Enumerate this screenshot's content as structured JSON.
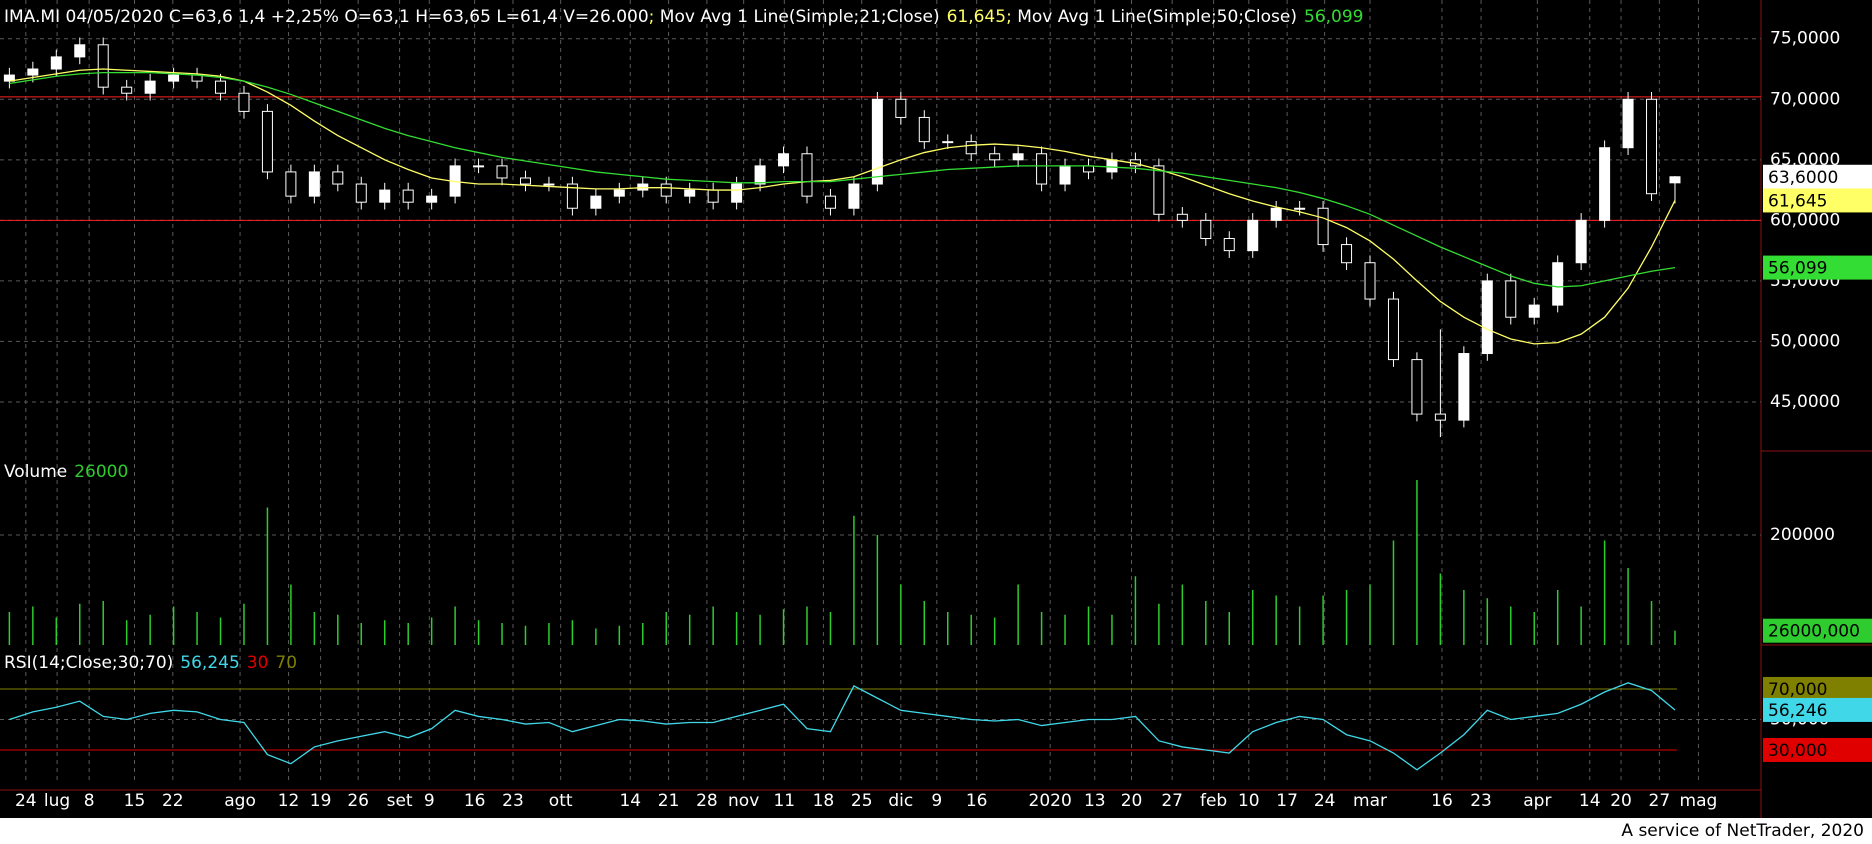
{
  "chart_data": [
    {
      "type": "candlestick",
      "title": "IMA.MI 04/05/2020 C=63,6 1,4 +2,25% O=63,1 H=63,65 L=61,4 V=26.000",
      "separator": "; ",
      "separator_color": "#ffff66",
      "x": [
        0,
        3,
        6,
        9,
        12,
        15,
        18,
        21,
        24,
        27,
        30,
        33,
        36,
        39,
        42,
        45,
        48,
        51,
        54,
        57,
        60,
        63,
        66,
        69,
        72,
        75,
        78,
        81,
        84,
        87,
        90,
        93,
        96,
        99,
        102,
        105,
        108,
        111,
        114,
        117,
        120,
        123,
        126,
        129,
        132,
        135,
        138,
        141,
        144,
        147,
        150,
        153,
        156,
        159,
        162,
        165,
        168,
        171,
        174,
        177,
        180,
        183,
        186,
        189,
        192,
        195,
        198,
        201,
        204,
        207,
        210,
        213
      ],
      "xlim": [
        -1.2,
        224
      ],
      "xticks": [
        {
          "value": 2.1,
          "label": "24"
        },
        {
          "value": 6.1,
          "label": "lug"
        },
        {
          "value": 10.2,
          "label": "8"
        },
        {
          "value": 16,
          "label": "15"
        },
        {
          "value": 20.9,
          "label": "22"
        },
        {
          "value": 29.5,
          "label": "ago"
        },
        {
          "value": 35.7,
          "label": "12"
        },
        {
          "value": 39.8,
          "label": "19"
        },
        {
          "value": 44.6,
          "label": "26"
        },
        {
          "value": 49.9,
          "label": "set"
        },
        {
          "value": 53.7,
          "label": "9"
        },
        {
          "value": 59.5,
          "label": "16"
        },
        {
          "value": 64.4,
          "label": "23"
        },
        {
          "value": 70.5,
          "label": "ott"
        },
        {
          "value": 79.4,
          "label": "14"
        },
        {
          "value": 84.3,
          "label": "21"
        },
        {
          "value": 89.2,
          "label": "28"
        },
        {
          "value": 93.9,
          "label": "nov"
        },
        {
          "value": 99.1,
          "label": "11"
        },
        {
          "value": 104.1,
          "label": "18"
        },
        {
          "value": 109,
          "label": "25"
        },
        {
          "value": 114,
          "label": "dic"
        },
        {
          "value": 118.6,
          "label": "9"
        },
        {
          "value": 123.7,
          "label": "16"
        },
        {
          "value": 133.1,
          "label": "2020"
        },
        {
          "value": 138.8,
          "label": "13"
        },
        {
          "value": 143.5,
          "label": "20"
        },
        {
          "value": 148.7,
          "label": "27"
        },
        {
          "value": 154,
          "label": "feb"
        },
        {
          "value": 158.5,
          "label": "10"
        },
        {
          "value": 163.4,
          "label": "17"
        },
        {
          "value": 168.2,
          "label": "24"
        },
        {
          "value": 174,
          "label": "mar"
        },
        {
          "value": 183.2,
          "label": "16"
        },
        {
          "value": 188.2,
          "label": "23"
        },
        {
          "value": 195.4,
          "label": "apr"
        },
        {
          "value": 202.1,
          "label": "14"
        },
        {
          "value": 206.1,
          "label": "20"
        },
        {
          "value": 211,
          "label": "27"
        },
        {
          "value": 216,
          "label": "mag"
        }
      ],
      "open": [
        71.5,
        72,
        72.5,
        73.5,
        74.5,
        71,
        70.5,
        71.5,
        72,
        71.5,
        70.5,
        69,
        64,
        62,
        64,
        63,
        61.5,
        62.5,
        61.5,
        62,
        64.5,
        64.5,
        63.5,
        63,
        63,
        61,
        62,
        62.5,
        63,
        62,
        62.5,
        61.5,
        63,
        64.5,
        65.5,
        62,
        61,
        63,
        70,
        68.5,
        66.5,
        66.5,
        65.5,
        65,
        65.5,
        63,
        64.5,
        64,
        65,
        64.5,
        60.5,
        60,
        58.5,
        57.5,
        60,
        61,
        61,
        58,
        56.5,
        53.5,
        48.5,
        44,
        43.5,
        49,
        55,
        52,
        53,
        56.5,
        60,
        66,
        70,
        63.1
      ],
      "high": [
        72.6,
        73.1,
        74.1,
        75.1,
        75.1,
        71.6,
        72.1,
        72.6,
        72.6,
        72.1,
        71.1,
        69.6,
        64.6,
        64.6,
        64.6,
        63.6,
        63.1,
        63.1,
        62.6,
        65.1,
        65.1,
        65.1,
        64.1,
        63.6,
        63.6,
        62.6,
        63.1,
        63.6,
        63.6,
        63.1,
        63.1,
        63.6,
        65.1,
        66.1,
        66.1,
        62.6,
        63.6,
        70.6,
        70.6,
        69.1,
        67.1,
        67.1,
        66.1,
        66.1,
        66.1,
        65.1,
        65.1,
        65.6,
        65.6,
        65.1,
        61.1,
        60.6,
        59.1,
        60.6,
        61.6,
        61.6,
        61.6,
        58.6,
        57.1,
        54.1,
        49.1,
        51,
        49.6,
        55.6,
        55.6,
        53.6,
        57.1,
        60.6,
        66.6,
        70.6,
        70.6,
        63.65
      ],
      "low": [
        70.9,
        71.4,
        71.9,
        72.9,
        70.4,
        69.9,
        69.9,
        70.9,
        70.9,
        69.9,
        68.4,
        63.4,
        61.4,
        61.4,
        62.4,
        60.9,
        60.9,
        60.9,
        60.9,
        61.4,
        63.9,
        62.9,
        62.4,
        62.4,
        60.4,
        60.4,
        61.4,
        61.9,
        61.4,
        61.4,
        60.9,
        60.9,
        62.4,
        63.9,
        61.4,
        60.4,
        60.4,
        62.4,
        67.9,
        65.9,
        65.9,
        64.9,
        64.4,
        64.4,
        62.4,
        62.4,
        63.4,
        63.4,
        63.9,
        59.9,
        59.4,
        57.9,
        56.9,
        56.9,
        59.4,
        60.4,
        57.4,
        55.9,
        52.9,
        47.9,
        43.4,
        42.1,
        42.9,
        48.4,
        51.4,
        51.4,
        52.4,
        55.9,
        59.4,
        65.4,
        61.6,
        61.4
      ],
      "close": [
        72,
        72.5,
        73.5,
        74.5,
        71,
        70.5,
        71.5,
        72,
        71.5,
        70.5,
        69,
        64,
        62,
        64,
        63,
        61.5,
        62.5,
        61.5,
        62,
        64.5,
        64.5,
        63.5,
        63,
        63,
        61,
        62,
        62.5,
        63,
        62,
        62.5,
        61.5,
        63,
        64.5,
        65.5,
        62,
        61,
        63,
        70,
        68.5,
        66.5,
        66.5,
        65.5,
        65,
        65.5,
        63,
        64.5,
        64,
        65,
        64.5,
        60.5,
        60,
        58.5,
        57.5,
        60,
        61,
        61,
        58,
        56.5,
        53.5,
        48.5,
        44,
        43.5,
        49,
        55,
        52,
        53,
        56.5,
        60,
        66,
        70,
        62.2,
        63.6
      ],
      "close_label": "63,6000",
      "up_color": "#ffffff",
      "down_color": "#000000",
      "series": [
        {
          "name": "Mov Avg 1 Line(Simple;21;Close)",
          "color": "#ffff66",
          "last_label": "61,645",
          "values": [
            71.5,
            71.8,
            72.1,
            72.4,
            72.5,
            72.4,
            72.3,
            72.2,
            72.1,
            71.9,
            71.5,
            70.6,
            69.5,
            68.2,
            67,
            66,
            65,
            64.2,
            63.5,
            63.2,
            63,
            63,
            62.9,
            62.8,
            62.7,
            62.6,
            62.6,
            62.7,
            62.7,
            62.6,
            62.5,
            62.5,
            62.7,
            63,
            63.2,
            63.3,
            63.6,
            64.3,
            65,
            65.6,
            66,
            66.2,
            66.3,
            66.2,
            66,
            65.7,
            65.3,
            65,
            64.7,
            64.2,
            63.6,
            62.9,
            62.2,
            61.6,
            61.1,
            60.7,
            60.2,
            59.4,
            58.3,
            56.8,
            55,
            53.3,
            52,
            51,
            50.2,
            49.8,
            49.9,
            50.6,
            52,
            54.4,
            57.8,
            61.645
          ]
        },
        {
          "name": "Mov Avg 1 Line(Simple;50;Close)",
          "color": "#33dd33",
          "last_label": "56,099",
          "values": [
            71.3,
            71.6,
            71.9,
            72.1,
            72.2,
            72.2,
            72.2,
            72.1,
            72,
            71.8,
            71.5,
            71,
            70.4,
            69.7,
            69,
            68.3,
            67.6,
            67,
            66.5,
            66,
            65.6,
            65.2,
            64.9,
            64.6,
            64.3,
            64,
            63.8,
            63.6,
            63.4,
            63.3,
            63.2,
            63.1,
            63.1,
            63.2,
            63.2,
            63.2,
            63.4,
            63.6,
            63.8,
            64,
            64.2,
            64.3,
            64.4,
            64.5,
            64.5,
            64.5,
            64.5,
            64.4,
            64.3,
            64.1,
            63.9,
            63.6,
            63.3,
            63,
            62.7,
            62.3,
            61.8,
            61.2,
            60.5,
            59.6,
            58.7,
            57.8,
            57,
            56.2,
            55.4,
            54.8,
            54.5,
            54.6,
            55,
            55.4,
            55.8,
            56.099
          ]
        }
      ],
      "ylim": [
        40.95,
        78.2
      ],
      "yticks": [
        {
          "value": 45,
          "label": "45,0000"
        },
        {
          "value": 50,
          "label": "50,0000"
        },
        {
          "value": 55,
          "label": "55,0000"
        },
        {
          "value": 60,
          "label": "60,0000"
        },
        {
          "value": 65,
          "label": "65,0000"
        },
        {
          "value": 70,
          "label": "70,0000"
        },
        {
          "value": 75,
          "label": "75,0000"
        }
      ],
      "grid": true,
      "hlines": [
        {
          "value": 70.2,
          "color": "#ff2020"
        },
        {
          "value": 60,
          "color": "#ff2020"
        }
      ]
    },
    {
      "type": "bar",
      "title": "Volume",
      "color": "#2ecc2e",
      "values": [
        60000,
        70000,
        50000,
        75000,
        80000,
        45000,
        55000,
        70000,
        60000,
        50000,
        75000,
        250000,
        110000,
        60000,
        55000,
        40000,
        45000,
        40000,
        50000,
        70000,
        45000,
        40000,
        35000,
        40000,
        45000,
        30000,
        35000,
        40000,
        60000,
        55000,
        70000,
        60000,
        55000,
        65000,
        70000,
        60000,
        235000,
        200000,
        110000,
        80000,
        60000,
        55000,
        50000,
        110000,
        60000,
        55000,
        70000,
        55000,
        125000,
        75000,
        110000,
        80000,
        60000,
        100000,
        90000,
        70000,
        90000,
        100000,
        110000,
        190000,
        300000,
        130000,
        100000,
        85000,
        70000,
        60000,
        100000,
        70000,
        190000,
        140000,
        80000,
        26000
      ],
      "box_label": "26000,000",
      "ylim": [
        0,
        352700
      ],
      "yticks": [
        200000
      ]
    },
    {
      "type": "line",
      "title": "RSI(14;Close;30;70)",
      "color": "#40d8e8",
      "values": [
        50,
        55,
        58,
        62,
        52,
        50,
        54,
        56,
        55,
        50,
        48,
        27,
        21,
        32,
        36,
        39,
        42,
        38,
        44,
        56,
        52,
        50,
        47,
        48,
        42,
        46,
        50,
        49,
        47,
        48,
        48,
        52,
        56,
        60,
        44,
        42,
        72,
        64,
        56,
        54,
        52,
        50,
        49,
        50,
        46,
        48,
        50,
        50,
        52,
        36,
        32,
        30,
        28,
        42,
        48,
        52,
        50,
        40,
        36,
        28,
        17,
        28,
        40,
        56,
        50,
        52,
        54,
        60,
        68,
        74,
        69,
        56.245
      ],
      "last_label": "56,245",
      "box": {
        "value": 56.246,
        "label": "56,246"
      },
      "levels": [
        {
          "value": 30,
          "label": "30",
          "box_label": "30,000",
          "color": "#e00000"
        },
        {
          "value": 70,
          "label": "70",
          "box_label": "70,000",
          "color": "#808000"
        }
      ],
      "ylim": [
        9,
        94.9
      ],
      "yticks": [
        {
          "value": 50,
          "label": "50,000"
        }
      ]
    }
  ],
  "footer": "A service of NetTrader, 2020"
}
